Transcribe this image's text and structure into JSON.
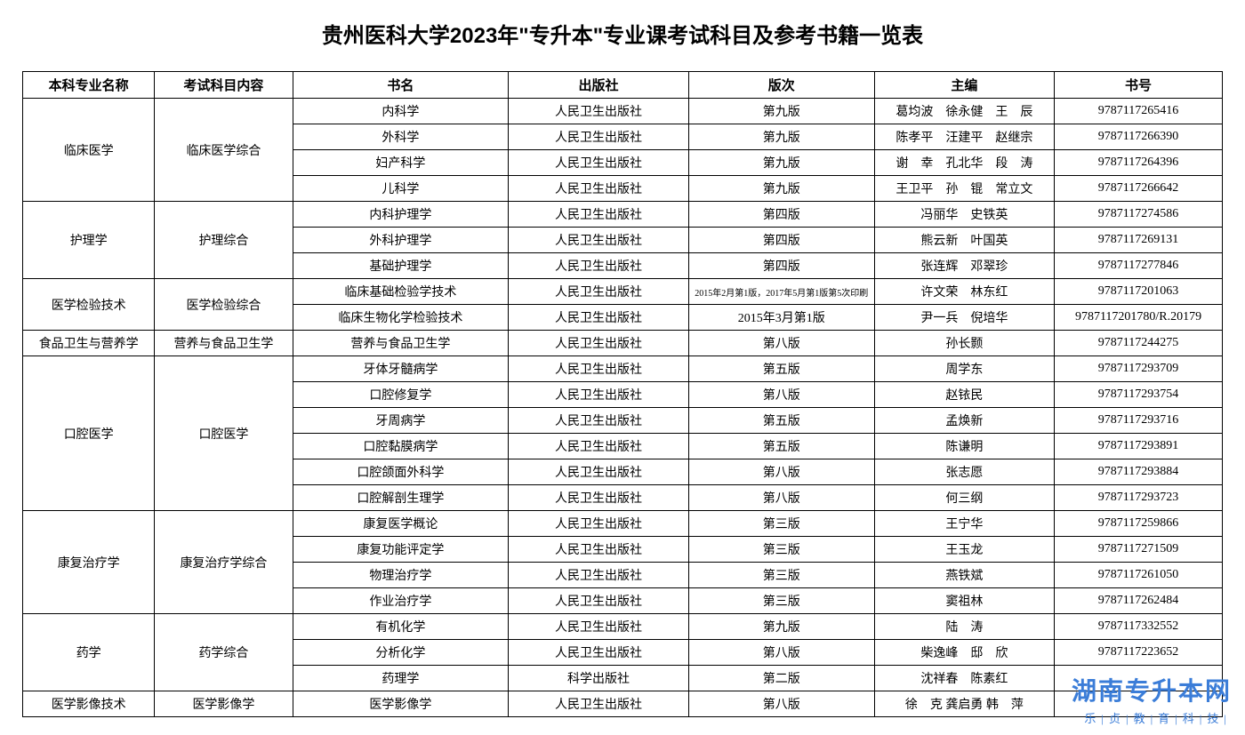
{
  "title": "贵州医科大学2023年\"专升本\"专业课考试科目及参考书籍一览表",
  "columns": [
    "本科专业名称",
    "考试科目内容",
    "书名",
    "出版社",
    "版次",
    "主编",
    "书号"
  ],
  "watermark": {
    "main": "湖南专升本网",
    "sub": "乐|贞|教|育|科|技|"
  },
  "rows": [
    {
      "major": "临床医学",
      "majorRowspan": 4,
      "subject": "临床医学综合",
      "subjectRowspan": 4,
      "book": "内科学",
      "publisher": "人民卫生出版社",
      "edition": "第九版",
      "editor": "葛均波　徐永健　王　辰",
      "isbn": "9787117265416"
    },
    {
      "book": "外科学",
      "publisher": "人民卫生出版社",
      "edition": "第九版",
      "editor": "陈孝平　汪建平　赵继宗",
      "isbn": "9787117266390"
    },
    {
      "book": "妇产科学",
      "publisher": "人民卫生出版社",
      "edition": "第九版",
      "editor": "谢　幸　孔北华　段　涛",
      "isbn": "9787117264396"
    },
    {
      "book": "儿科学",
      "publisher": "人民卫生出版社",
      "edition": "第九版",
      "editor": "王卫平　孙　锟　常立文",
      "isbn": "9787117266642"
    },
    {
      "major": "护理学",
      "majorRowspan": 3,
      "subject": "护理综合",
      "subjectRowspan": 3,
      "book": "内科护理学",
      "publisher": "人民卫生出版社",
      "edition": "第四版",
      "editor": "冯丽华　史铁英",
      "isbn": "9787117274586"
    },
    {
      "book": "外科护理学",
      "publisher": "人民卫生出版社",
      "edition": "第四版",
      "editor": "熊云新　叶国英",
      "isbn": "9787117269131"
    },
    {
      "book": "基础护理学",
      "publisher": "人民卫生出版社",
      "edition": "第四版",
      "editor": "张连辉　邓翠珍",
      "isbn": "9787117277846"
    },
    {
      "major": "医学检验技术",
      "majorRowspan": 2,
      "subject": "医学检验综合",
      "subjectRowspan": 2,
      "book": "临床基础检验学技术",
      "publisher": "人民卫生出版社",
      "edition": "2015年2月第1版，2017年5月第1版第5次印刷",
      "editionSmall": true,
      "editor": "许文荣　林东红",
      "isbn": "9787117201063"
    },
    {
      "book": "临床生物化学检验技术",
      "publisher": "人民卫生出版社",
      "edition": "2015年3月第1版",
      "editor": "尹一兵　倪培华",
      "isbn": "9787117201780/R.20179"
    },
    {
      "major": "食品卫生与营养学",
      "majorRowspan": 1,
      "subject": "营养与食品卫生学",
      "subjectRowspan": 1,
      "book": "营养与食品卫生学",
      "publisher": "人民卫生出版社",
      "edition": "第八版",
      "editor": "孙长颢",
      "isbn": "9787117244275"
    },
    {
      "major": "口腔医学",
      "majorRowspan": 6,
      "subject": "口腔医学",
      "subjectRowspan": 6,
      "book": "牙体牙髓病学",
      "publisher": "人民卫生出版社",
      "edition": "第五版",
      "editor": "周学东",
      "isbn": "9787117293709"
    },
    {
      "book": "口腔修复学",
      "publisher": "人民卫生出版社",
      "edition": "第八版",
      "editor": "赵铱民",
      "isbn": "9787117293754"
    },
    {
      "book": "牙周病学",
      "publisher": "人民卫生出版社",
      "edition": "第五版",
      "editor": "孟焕新",
      "isbn": "9787117293716"
    },
    {
      "book": "口腔黏膜病学",
      "publisher": "人民卫生出版社",
      "edition": "第五版",
      "editor": "陈谦明",
      "isbn": "9787117293891"
    },
    {
      "book": "口腔颌面外科学",
      "publisher": "人民卫生出版社",
      "edition": "第八版",
      "editor": "张志愿",
      "isbn": "9787117293884"
    },
    {
      "book": "口腔解剖生理学",
      "publisher": "人民卫生出版社",
      "edition": "第八版",
      "editor": "何三纲",
      "isbn": "9787117293723"
    },
    {
      "major": "康复治疗学",
      "majorRowspan": 4,
      "subject": "康复治疗学综合",
      "subjectRowspan": 4,
      "book": "康复医学概论",
      "publisher": "人民卫生出版社",
      "edition": "第三版",
      "editor": "王宁华",
      "isbn": "9787117259866"
    },
    {
      "book": "康复功能评定学",
      "publisher": "人民卫生出版社",
      "edition": "第三版",
      "editor": "王玉龙",
      "isbn": "9787117271509"
    },
    {
      "book": "物理治疗学",
      "publisher": "人民卫生出版社",
      "edition": "第三版",
      "editor": "燕铁斌",
      "isbn": "9787117261050"
    },
    {
      "book": "作业治疗学",
      "publisher": "人民卫生出版社",
      "edition": "第三版",
      "editor": "窦祖林",
      "isbn": "9787117262484"
    },
    {
      "major": "药学",
      "majorRowspan": 3,
      "subject": "药学综合",
      "subjectRowspan": 3,
      "book": "有机化学",
      "publisher": "人民卫生出版社",
      "edition": "第九版",
      "editor": "陆　涛",
      "isbn": "9787117332552"
    },
    {
      "book": "分析化学",
      "publisher": "人民卫生出版社",
      "edition": "第八版",
      "editor": "柴逸峰　邸　欣",
      "isbn": "9787117223652"
    },
    {
      "book": "药理学",
      "publisher": "科学出版社",
      "edition": "第二版",
      "editor": "沈祥春　陈素红",
      "isbn": ""
    },
    {
      "major": "医学影像技术",
      "majorRowspan": 1,
      "subject": "医学影像学",
      "subjectRowspan": 1,
      "book": "医学影像学",
      "publisher": "人民卫生出版社",
      "edition": "第八版",
      "editor": "徐　克 龚启勇 韩　萍",
      "isbn": ""
    }
  ]
}
